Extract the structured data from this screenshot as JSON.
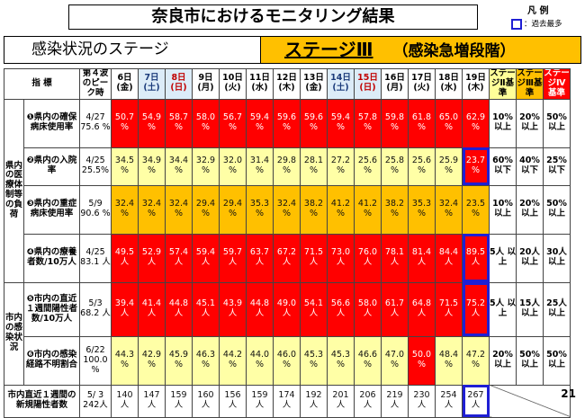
{
  "title": "奈良市におけるモニタリング結果",
  "legend": {
    "title": "凡 例",
    "max_label": "：過去最多"
  },
  "stage": {
    "label": "感染状況のステージ",
    "value": "ステージⅢ",
    "note": "（感染急増段階）"
  },
  "header": {
    "indicator": "指 標",
    "peak": "第４波のピーク時",
    "dates": [
      {
        "d": "6日",
        "w": "(金)",
        "type": "wd"
      },
      {
        "d": "7日",
        "w": "(土)",
        "type": "sat"
      },
      {
        "d": "8日",
        "w": "(日)",
        "type": "sun"
      },
      {
        "d": "9日",
        "w": "(月)",
        "type": "wd"
      },
      {
        "d": "10日",
        "w": "(火)",
        "type": "wd"
      },
      {
        "d": "11日",
        "w": "(水)",
        "type": "wd"
      },
      {
        "d": "12日",
        "w": "(木)",
        "type": "wd"
      },
      {
        "d": "13日",
        "w": "(金)",
        "type": "wd"
      },
      {
        "d": "14日",
        "w": "(土)",
        "type": "sat"
      },
      {
        "d": "15日",
        "w": "(日)",
        "type": "sun"
      },
      {
        "d": "16日",
        "w": "(月)",
        "type": "wd"
      },
      {
        "d": "17日",
        "w": "(火)",
        "type": "wd"
      },
      {
        "d": "18日",
        "w": "(水)",
        "type": "wd"
      },
      {
        "d": "19日",
        "w": "(木)",
        "type": "wd"
      }
    ],
    "thresholds": [
      {
        "t": "ステージⅡ基準",
        "cls": "thr2"
      },
      {
        "t": "ステージⅢ基準",
        "cls": "thr3"
      },
      {
        "t": "ステージⅣ基準",
        "cls": "thr4"
      }
    ]
  },
  "categories": [
    {
      "label": "県内の医療体制等の負荷",
      "rows": 4
    },
    {
      "label": "市内の感染状況",
      "rows": 2
    }
  ],
  "rows": [
    {
      "indicator": "❶県内の確保病床使用率",
      "peak": "4/27 75.6 %",
      "values": [
        "50.7 %",
        "54.9 %",
        "58.7 %",
        "58.0 %",
        "56.7 %",
        "59.4 %",
        "59.6 %",
        "59.6 %",
        "59.4 %",
        "57.8 %",
        "59.8 %",
        "61.8 %",
        "65.0 %",
        "62.9 %"
      ],
      "colors": [
        "red",
        "red",
        "red",
        "red",
        "red",
        "red",
        "red",
        "red",
        "red",
        "red",
        "red",
        "red",
        "red",
        "red"
      ],
      "max_index": -1,
      "criteria": [
        "10% 以上",
        "20% 以上",
        "50% 以上"
      ]
    },
    {
      "indicator": "❷県内の入院率",
      "peak": "4/25 25.5%",
      "values": [
        "34.5 %",
        "34.9 %",
        "34.4 %",
        "32.9 %",
        "32.0 %",
        "31.4 %",
        "29.8 %",
        "28.1 %",
        "27.2 %",
        "25.6 %",
        "25.8 %",
        "25.6 %",
        "25.9 %",
        "23.7 %"
      ],
      "colors": [
        "yellow",
        "yellow",
        "yellow",
        "yellow",
        "yellow",
        "yellow",
        "yellow",
        "yellow",
        "yellow",
        "yellow",
        "yellow",
        "yellow",
        "yellow",
        "red"
      ],
      "max_index": 13,
      "criteria": [
        "60% 以下",
        "40% 以下",
        "25% 以下"
      ]
    },
    {
      "indicator": "❸県内の重症病床使用率",
      "peak": "5/9 90.6 %",
      "values": [
        "32.4 %",
        "32.4 %",
        "32.4 %",
        "29.4 %",
        "29.4 %",
        "35.3 %",
        "32.4 %",
        "38.2 %",
        "41.2 %",
        "41.2 %",
        "38.2 %",
        "35.3 %",
        "32.4 %",
        "23.5 %"
      ],
      "colors": [
        "orange",
        "orange",
        "orange",
        "orange",
        "orange",
        "orange",
        "orange",
        "orange",
        "orange",
        "orange",
        "orange",
        "orange",
        "orange",
        "orange"
      ],
      "max_index": -1,
      "criteria": [
        "10% 以上",
        "20% 以上",
        "50% 以上"
      ]
    },
    {
      "indicator": "❹県内の療養者数/10万人",
      "peak": "4/25 83.1 人",
      "values": [
        "49.5 人",
        "52.9 人",
        "57.4 人",
        "59.4 人",
        "59.7 人",
        "63.7 人",
        "67.2 人",
        "71.5 人",
        "73.0 人",
        "76.0 人",
        "78.1 人",
        "81.4 人",
        "84.4 人",
        "89.5 人"
      ],
      "colors": [
        "red",
        "red",
        "red",
        "red",
        "red",
        "red",
        "red",
        "red",
        "red",
        "red",
        "red",
        "red",
        "red",
        "red"
      ],
      "max_index": 13,
      "criteria": [
        "5人 以上",
        "20人 以上",
        "30人 以上"
      ]
    },
    {
      "indicator": "❺市内の直近１週間陽性者数/10万人",
      "peak": "5/3 68.2 人",
      "values": [
        "39.4 人",
        "41.4 人",
        "44.8 人",
        "45.1 人",
        "43.9 人",
        "44.8 人",
        "49.0 人",
        "54.1 人",
        "56.6 人",
        "58.0 人",
        "61.7 人",
        "64.8 人",
        "71.5 人",
        "75.2 人"
      ],
      "colors": [
        "red",
        "red",
        "red",
        "red",
        "red",
        "red",
        "red",
        "red",
        "red",
        "red",
        "red",
        "red",
        "red",
        "red"
      ],
      "max_index": 13,
      "criteria": [
        "5人 以上",
        "15人 以上",
        "25人 以上"
      ]
    },
    {
      "indicator": "❻市内の感染経路不明割合",
      "peak": "6/22 100.0 %",
      "values": [
        "44.3 %",
        "42.9 %",
        "45.9 %",
        "46.3 %",
        "44.2 %",
        "44.0 %",
        "46.0 %",
        "45.3 %",
        "45.3 %",
        "46.6 %",
        "47.0 %",
        "50.0 %",
        "48.4 %",
        "47.2 %"
      ],
      "colors": [
        "yellow",
        "yellow",
        "yellow",
        "yellow",
        "yellow",
        "yellow",
        "yellow",
        "yellow",
        "yellow",
        "yellow",
        "yellow",
        "red",
        "yellow",
        "yellow"
      ],
      "max_index": -1,
      "criteria": [
        "20% 以上",
        "50% 以上",
        "50% 以上"
      ]
    }
  ],
  "bottom": {
    "label": "市内直近１週間の新規陽性者数",
    "peak": "5/ 3 242人",
    "values": [
      "140 人",
      "147 人",
      "159 人",
      "160 人",
      "156 人",
      "159 人",
      "174 人",
      "192 人",
      "201 人",
      "206 人",
      "219 人",
      "230 人",
      "254 人",
      "267 人"
    ],
    "max_index": 13
  },
  "page": "21"
}
